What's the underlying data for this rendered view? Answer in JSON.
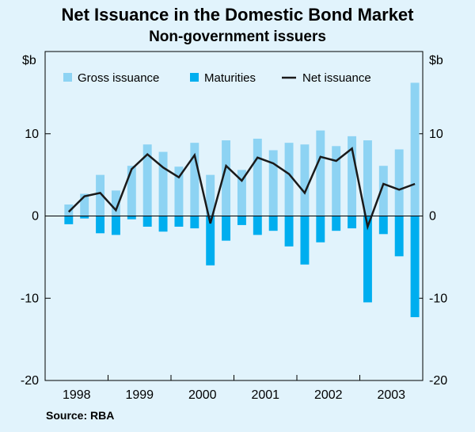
{
  "title": "Net Issuance in the Domestic Bond Market",
  "subtitle": "Non-government issuers",
  "source": "Source: RBA",
  "colors": {
    "background": "#e1f3fc",
    "gross": "#8dd3f3",
    "maturities": "#00aeef",
    "net": "#1a1a1a",
    "axis": "#000000"
  },
  "chart_data": {
    "type": "bar",
    "title": "Net Issuance in the Domestic Bond Market",
    "subtitle": "Non-government issuers",
    "ylabel_left": "$b",
    "ylabel_right": "$b",
    "ylim": [
      -20,
      20
    ],
    "yticks": [
      -20,
      -10,
      0,
      10
    ],
    "ytick_labels": [
      "-20",
      "-10",
      "0",
      "10"
    ],
    "year_labels": [
      "1998",
      "1999",
      "2000",
      "2001",
      "2002",
      "2003"
    ],
    "quarters_per_year": 4,
    "first_quarter_offset": 1,
    "legend": {
      "position": "top",
      "entries": [
        "Gross issuance",
        "Maturities",
        "Net issuance"
      ]
    },
    "series": [
      {
        "name": "Gross issuance",
        "type": "bar",
        "values": [
          1.4,
          2.7,
          5.0,
          3.1,
          6.1,
          8.7,
          7.8,
          6.0,
          8.9,
          5.0,
          9.2,
          5.6,
          9.4,
          8.0,
          8.9,
          8.7,
          10.4,
          8.5,
          9.7,
          9.2,
          6.1,
          8.1,
          16.2
        ]
      },
      {
        "name": "Maturities",
        "type": "bar",
        "values": [
          -1.0,
          -0.3,
          -2.1,
          -2.3,
          -0.4,
          -1.3,
          -1.9,
          -1.3,
          -1.5,
          -6.0,
          -3.0,
          -1.1,
          -2.3,
          -1.8,
          -3.7,
          -5.9,
          -3.2,
          -1.8,
          -1.5,
          -10.5,
          -2.2,
          -4.9,
          -12.3
        ]
      },
      {
        "name": "Net issuance",
        "type": "line",
        "values": [
          0.5,
          2.4,
          2.8,
          0.7,
          5.7,
          7.5,
          5.9,
          4.7,
          7.4,
          -0.9,
          6.1,
          4.3,
          7.1,
          6.4,
          5.1,
          2.8,
          7.2,
          6.7,
          8.2,
          -1.3,
          3.9,
          3.2,
          3.9
        ]
      }
    ]
  }
}
